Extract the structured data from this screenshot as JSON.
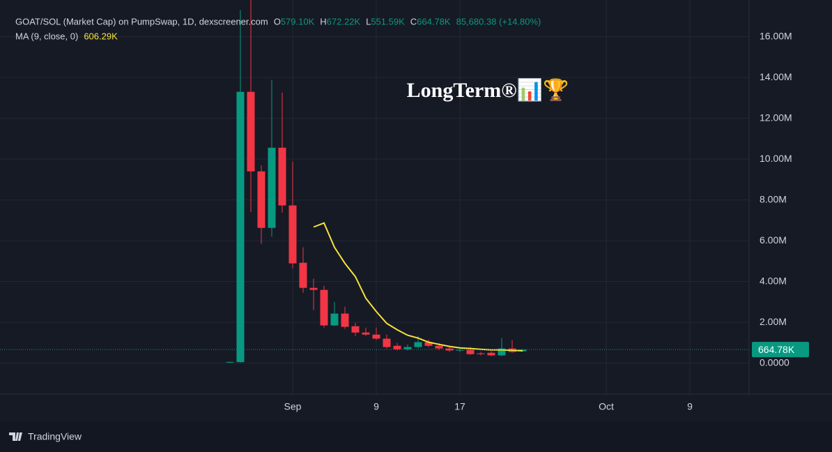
{
  "chart_data": {
    "type": "candlestick",
    "title": "GOAT/SOL (Market Cap) on PumpSwap, 1D, dexscreener.com",
    "ohlc_labels": [
      "O",
      "H",
      "L",
      "C"
    ],
    "ohlc_value_labels": [
      "579.10K",
      "672.22K",
      "551.59K",
      "664.78K"
    ],
    "change_label": "85,680.38 (+14.80%)",
    "watermark": "LongTerm®📊🏆",
    "footer": "TradingView",
    "up_color": "#089981",
    "down_color": "#f23645",
    "x": [
      "08-26",
      "08-27",
      "08-28",
      "08-29",
      "08-30",
      "08-31",
      "09-01",
      "09-02",
      "09-03",
      "09-04",
      "09-05",
      "09-06",
      "09-07",
      "09-08",
      "09-09",
      "09-10",
      "09-11",
      "09-12",
      "09-13",
      "09-14",
      "09-15",
      "09-16",
      "09-17",
      "09-18",
      "09-19",
      "09-20",
      "09-21",
      "09-22",
      "09-23"
    ],
    "open": [
      40000,
      50000,
      13300000,
      9400000,
      6630000,
      10560000,
      7730000,
      4920000,
      3690000,
      3590000,
      1850000,
      2430000,
      1810000,
      1500000,
      1400000,
      1200000,
      850000,
      680000,
      790000,
      1030000,
      850000,
      720000,
      620000,
      650000,
      480000,
      510000,
      380000,
      720000,
      579100
    ],
    "high": [
      80000,
      17300000,
      17800000,
      9700000,
      13880000,
      13260000,
      9880000,
      5680000,
      4140000,
      3790000,
      3000000,
      2770000,
      1980000,
      1740000,
      1740000,
      1400000,
      990000,
      920000,
      1330000,
      1160000,
      990000,
      820000,
      750000,
      790000,
      550000,
      580000,
      1230000,
      1130000,
      672220
    ],
    "low": [
      20000,
      30000,
      7400000,
      5850000,
      6200000,
      7380000,
      4650000,
      3450000,
      2600000,
      1740000,
      1810000,
      1680000,
      1330000,
      1330000,
      1130000,
      720000,
      620000,
      620000,
      720000,
      790000,
      650000,
      550000,
      550000,
      410000,
      380000,
      340000,
      340000,
      510000,
      551590
    ],
    "close": [
      60000,
      13300000,
      9400000,
      6630000,
      10560000,
      7730000,
      4890000,
      3690000,
      3590000,
      1850000,
      2430000,
      1780000,
      1500000,
      1400000,
      1200000,
      790000,
      680000,
      790000,
      1030000,
      850000,
      720000,
      620000,
      650000,
      440000,
      440000,
      380000,
      720000,
      550000,
      664780
    ],
    "series": [
      {
        "name": "MA (9, close, 0)",
        "color": "#f5e33c",
        "value_label": "606.29K",
        "values": [
          null,
          null,
          null,
          null,
          null,
          null,
          null,
          null,
          6670000,
          6870000,
          5680000,
          4890000,
          4240000,
          3180000,
          2530000,
          1950000,
          1640000,
          1370000,
          1230000,
          1030000,
          920000,
          820000,
          750000,
          720000,
          680000,
          650000,
          650000,
          630000,
          606290
        ]
      }
    ],
    "last_price_label": "664.78K",
    "xlim": [
      "08-04",
      "10-14"
    ],
    "xticks": [
      {
        "value": "09-01",
        "label": "Sep"
      },
      {
        "value": "09-09",
        "label": "9"
      },
      {
        "value": "09-17",
        "label": "17"
      },
      {
        "value": "10-01",
        "label": "Oct"
      },
      {
        "value": "10-09",
        "label": "9"
      }
    ],
    "ylim": [
      -1500000,
      17800000
    ],
    "yticks": [
      {
        "value": 0,
        "label": "0.0000"
      },
      {
        "value": 2000000,
        "label": "2.00M"
      },
      {
        "value": 4000000,
        "label": "4.00M"
      },
      {
        "value": 6000000,
        "label": "6.00M"
      },
      {
        "value": 8000000,
        "label": "8.00M"
      },
      {
        "value": 10000000,
        "label": "10.00M"
      },
      {
        "value": 12000000,
        "label": "12.00M"
      },
      {
        "value": 14000000,
        "label": "14.00M"
      },
      {
        "value": 16000000,
        "label": "16.00M"
      }
    ],
    "grid": true
  }
}
